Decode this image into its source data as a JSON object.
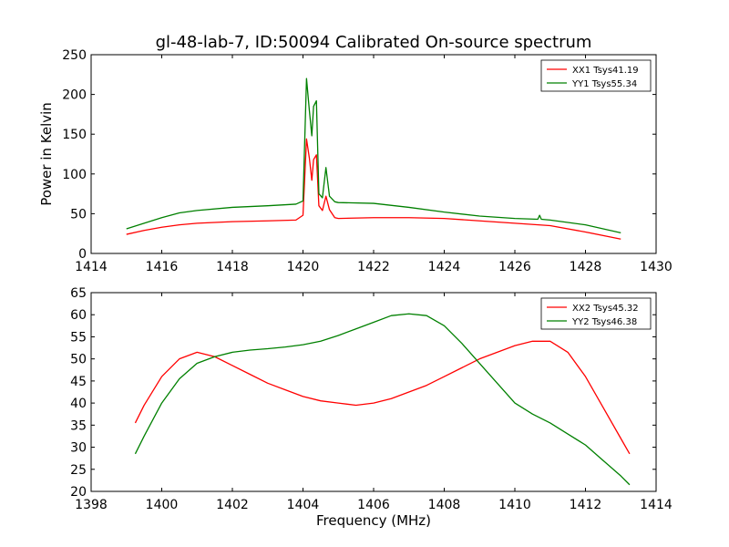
{
  "title": "gl-48-lab-7, ID:50094 Calibrated On-source spectrum",
  "chart_data": [
    {
      "type": "line",
      "ylabel": "Power in Kelvin",
      "xlabel": "",
      "xlim": [
        1414,
        1430
      ],
      "ylim": [
        0,
        250
      ],
      "xticks": [
        1414,
        1416,
        1418,
        1420,
        1422,
        1424,
        1426,
        1428,
        1430
      ],
      "yticks": [
        0,
        50,
        100,
        150,
        200,
        250
      ],
      "grid": false,
      "legend_position": "top-right",
      "series": [
        {
          "name": "XX1 Tsys41.19",
          "color": "#ff0000",
          "x": [
            1415.0,
            1415.5,
            1416.0,
            1416.5,
            1417.0,
            1418.0,
            1419.0,
            1419.8,
            1420.0,
            1420.1,
            1420.18,
            1420.25,
            1420.3,
            1420.38,
            1420.45,
            1420.55,
            1420.65,
            1420.75,
            1420.9,
            1421.0,
            1422.0,
            1423.0,
            1424.0,
            1425.0,
            1426.0,
            1427.0,
            1428.0,
            1429.0
          ],
          "y": [
            24,
            29,
            33,
            36,
            38,
            40,
            41,
            42,
            48,
            144,
            120,
            92,
            118,
            124,
            60,
            54,
            72,
            55,
            45,
            44,
            45,
            45,
            44,
            41,
            38,
            35,
            27,
            18
          ]
        },
        {
          "name": "YY1 Tsys55.34",
          "color": "#008000",
          "x": [
            1415.0,
            1415.5,
            1416.0,
            1416.5,
            1417.0,
            1418.0,
            1419.0,
            1419.8,
            1420.0,
            1420.1,
            1420.18,
            1420.25,
            1420.3,
            1420.38,
            1420.45,
            1420.55,
            1420.65,
            1420.75,
            1420.9,
            1421.0,
            1422.0,
            1423.0,
            1424.0,
            1425.0,
            1426.0,
            1426.65,
            1426.7,
            1426.75,
            1427.0,
            1428.0,
            1429.0
          ],
          "y": [
            31,
            38,
            45,
            51,
            54,
            58,
            60,
            62,
            66,
            220,
            180,
            148,
            185,
            192,
            75,
            70,
            108,
            72,
            65,
            64,
            63,
            58,
            52,
            47,
            44,
            43,
            48,
            43,
            42,
            36,
            26
          ]
        }
      ]
    },
    {
      "type": "line",
      "ylabel": "",
      "xlabel": "Frequency (MHz)",
      "xlim": [
        1398,
        1414
      ],
      "ylim": [
        20,
        65
      ],
      "xticks": [
        1398,
        1400,
        1402,
        1404,
        1406,
        1408,
        1410,
        1412,
        1414
      ],
      "yticks": [
        20,
        25,
        30,
        35,
        40,
        45,
        50,
        55,
        60,
        65
      ],
      "grid": false,
      "legend_position": "top-right",
      "series": [
        {
          "name": "XX2 Tsys45.32",
          "color": "#ff0000",
          "x": [
            1399.25,
            1399.5,
            1400.0,
            1400.5,
            1401.0,
            1401.5,
            1402.0,
            1402.5,
            1403.0,
            1403.5,
            1404.0,
            1404.5,
            1405.0,
            1405.5,
            1406.0,
            1406.5,
            1407.0,
            1407.5,
            1408.0,
            1408.5,
            1409.0,
            1409.5,
            1410.0,
            1410.5,
            1411.0,
            1411.5,
            1412.0,
            1412.5,
            1413.0,
            1413.25
          ],
          "y": [
            35.5,
            39.5,
            46,
            50,
            51.5,
            50.5,
            48.5,
            46.5,
            44.5,
            43,
            41.5,
            40.5,
            40,
            39.5,
            40,
            41,
            42.5,
            44,
            46,
            48,
            50,
            51.5,
            53,
            54,
            54,
            51.5,
            46,
            39,
            32,
            28.5
          ]
        },
        {
          "name": "YY2 Tsys46.38",
          "color": "#008000",
          "x": [
            1399.25,
            1399.5,
            1400.0,
            1400.5,
            1401.0,
            1401.5,
            1402.0,
            1402.5,
            1403.0,
            1403.5,
            1404.0,
            1404.5,
            1405.0,
            1405.5,
            1406.0,
            1406.5,
            1407.0,
            1407.5,
            1408.0,
            1408.5,
            1409.0,
            1409.5,
            1410.0,
            1410.5,
            1411.0,
            1411.5,
            1412.0,
            1412.5,
            1413.0,
            1413.25
          ],
          "y": [
            28.5,
            32.5,
            40,
            45.5,
            49,
            50.5,
            51.5,
            52,
            52.3,
            52.7,
            53.2,
            54,
            55.3,
            56.8,
            58.3,
            59.8,
            60.2,
            59.8,
            57.5,
            53.5,
            49,
            44.5,
            40,
            37.5,
            35.5,
            33,
            30.5,
            27,
            23.5,
            21.5
          ]
        }
      ]
    }
  ]
}
